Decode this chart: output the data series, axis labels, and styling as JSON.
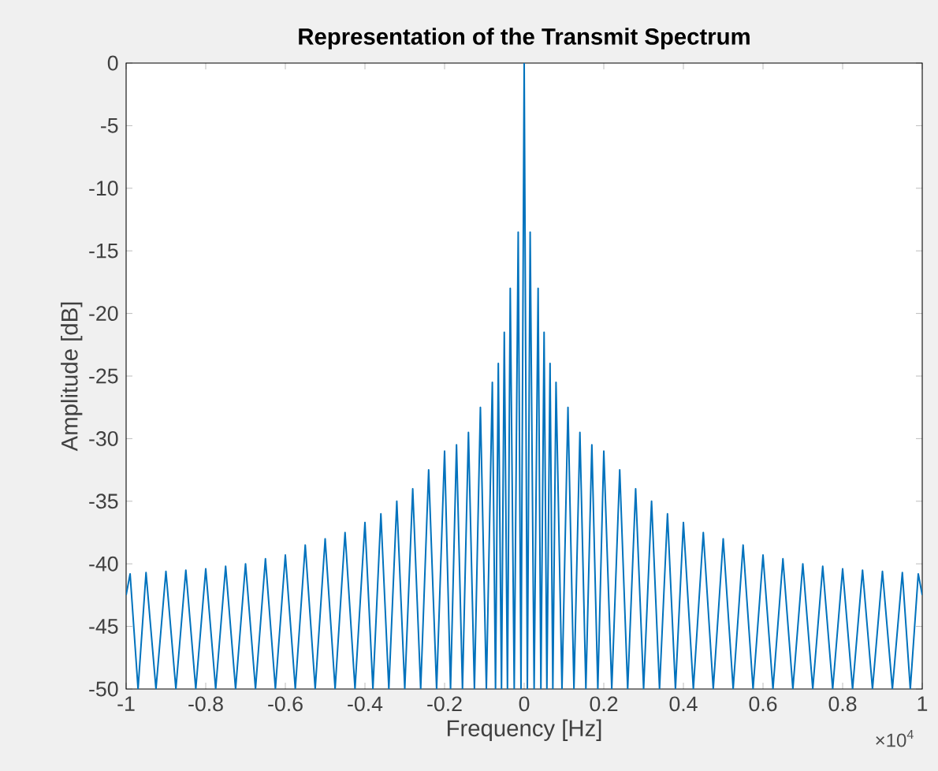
{
  "chart_data": {
    "type": "line",
    "title": "**Representation of the Transmit Spectrum**",
    "xlabel": "Frequency [Hz]",
    "ylabel": "Amplitude [dB]",
    "annotations": [
      "×10$^{4}$"
    ],
    "xlim": [
      -1,
      1
    ],
    "ylim": [
      -50,
      0
    ],
    "xticks": [
      -1,
      -0.8,
      -0.6,
      -0.4,
      -0.2,
      0,
      0.2,
      0.4,
      0.6,
      0.8,
      1
    ],
    "yticks": [
      -50,
      -45,
      -40,
      -35,
      -30,
      -25,
      -20,
      -15,
      -10,
      -5,
      0
    ],
    "grid": false,
    "marker": "none",
    "line_style": "solid",
    "series": [
      {
        "color": "#0072bd",
        "x": [
          -1,
          -0.99,
          -0.97,
          -0.95,
          -0.925,
          -0.9,
          -0.875,
          -0.85,
          -0.825,
          -0.8,
          -0.775,
          -0.75,
          -0.725,
          -0.7,
          -0.675,
          -0.65,
          -0.625,
          -0.6,
          -0.575,
          -0.55,
          -0.525,
          -0.5,
          -0.475,
          -0.45,
          -0.425,
          -0.4,
          -0.38,
          -0.36,
          -0.34,
          -0.32,
          -0.3,
          -0.28,
          -0.26,
          -0.24,
          -0.22,
          -0.2,
          -0.185,
          -0.17,
          -0.155,
          -0.14,
          -0.125,
          -0.11,
          -0.095,
          -0.08,
          -0.072,
          -0.065,
          -0.057,
          -0.05,
          -0.042,
          -0.035,
          -0.025,
          -0.015,
          -0.008,
          0,
          0.008,
          0.015,
          0.025,
          0.035,
          0.042,
          0.05,
          0.057,
          0.065,
          0.072,
          0.08,
          0.095,
          0.11,
          0.125,
          0.14,
          0.155,
          0.17,
          0.185,
          0.2,
          0.22,
          0.24,
          0.26,
          0.28,
          0.3,
          0.32,
          0.34,
          0.36,
          0.38,
          0.4,
          0.425,
          0.45,
          0.475,
          0.5,
          0.525,
          0.55,
          0.575,
          0.6,
          0.625,
          0.65,
          0.675,
          0.7,
          0.725,
          0.75,
          0.775,
          0.8,
          0.825,
          0.85,
          0.875,
          0.9,
          0.925,
          0.95,
          0.97,
          0.99,
          1
        ],
        "values": [
          -42.5,
          -40.8,
          -50,
          -40.7,
          -50,
          -40.6,
          -50,
          -40.5,
          -50,
          -40.4,
          -50,
          -40.2,
          -50,
          -40,
          -50,
          -39.6,
          -50,
          -39.3,
          -50,
          -38.5,
          -50,
          -38,
          -50,
          -37.5,
          -50,
          -36.7,
          -50,
          -36,
          -50,
          -35,
          -50,
          -34,
          -50,
          -32.5,
          -50,
          -31,
          -50,
          -30.5,
          -50,
          -29.5,
          -50,
          -27.5,
          -50,
          -25.5,
          -50,
          -24,
          -50,
          -21.5,
          -50,
          -18,
          -50,
          -13.5,
          -50,
          0,
          -50,
          -13.5,
          -50,
          -18,
          -50,
          -21.5,
          -50,
          -24,
          -50,
          -25.5,
          -50,
          -27.5,
          -50,
          -29.5,
          -50,
          -30.5,
          -50,
          -31,
          -50,
          -32.5,
          -50,
          -34,
          -50,
          -35,
          -50,
          -36,
          -50,
          -36.7,
          -50,
          -37.5,
          -50,
          -38,
          -50,
          -38.5,
          -50,
          -39.3,
          -50,
          -39.6,
          -50,
          -40,
          -50,
          -40.2,
          -50,
          -40.4,
          -50,
          -40.5,
          -50,
          -40.6,
          -50,
          -40.7,
          -50,
          -40.8,
          -42.5
        ]
      }
    ]
  }
}
